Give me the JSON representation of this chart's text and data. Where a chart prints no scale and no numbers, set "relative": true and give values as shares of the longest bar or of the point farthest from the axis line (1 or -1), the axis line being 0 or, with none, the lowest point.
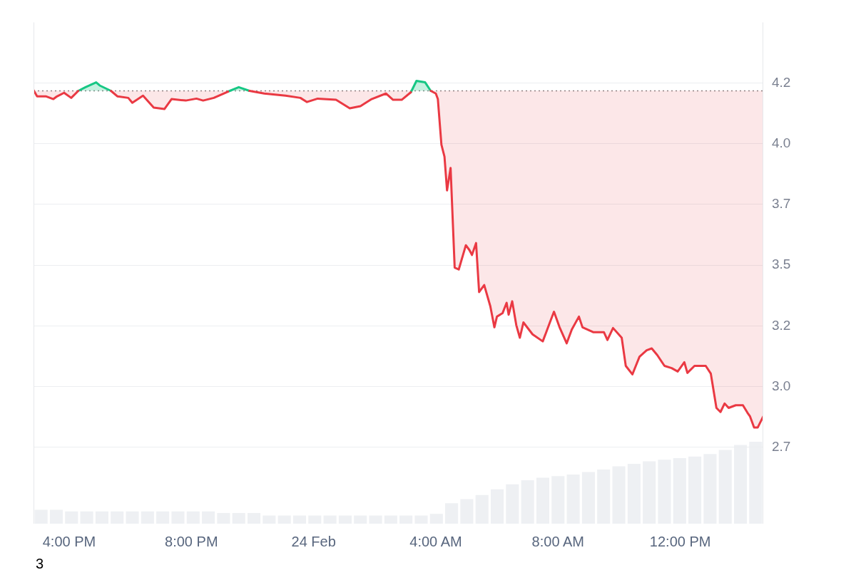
{
  "chart_data": [
    {
      "type": "line",
      "xlim": [
        "--02-23T14:50",
        "--02-24T14:43"
      ],
      "xticks": [
        {
          "value": "--02-23T16:00",
          "label": "4:00 PM"
        },
        {
          "value": "--02-23T20:00",
          "label": "8:00 PM"
        },
        {
          "value": "--02-24T00:00",
          "label": "24 Feb"
        },
        {
          "value": "--02-24T04:00",
          "label": "4:00 AM"
        },
        {
          "value": "--02-24T08:00",
          "label": "8:00 AM"
        },
        {
          "value": "--02-24T12:00",
          "label": "12:00 PM"
        }
      ],
      "ylim": [
        2.385,
        4.45
      ],
      "yticks": [
        {
          "value": 2.7,
          "label": "2.7"
        },
        {
          "value": 2.95,
          "label": "3.0"
        },
        {
          "value": 3.2,
          "label": "3.2"
        },
        {
          "value": 3.45,
          "label": "3.5"
        },
        {
          "value": 3.7,
          "label": "3.7"
        },
        {
          "value": 3.95,
          "label": "4.0"
        },
        {
          "value": 4.2,
          "label": "4.2"
        }
      ],
      "grid": "y",
      "legend": false,
      "marker": "none",
      "line_style": "solid",
      "ref_lines": [
        {
          "axis": "y",
          "value": 4.168,
          "color": "#888888",
          "line_style": "dotted"
        }
      ],
      "annotations": [
        "3"
      ],
      "series": [
        {
          "color": "#16c784",
          "x": [
            "--02-23T16:18",
            "--02-23T16:32",
            "--02-23T16:53",
            "--02-23T17:00",
            "--02-23T17:22",
            "--02-23T19:00",
            "--02-23T21:12",
            "--02-23T21:33",
            "--02-23T21:54",
            "--02-24T01:00",
            "--02-24T03:11",
            "--02-24T03:22",
            "--02-24T03:39",
            "--02-24T03:50"
          ],
          "values": [
            4.168,
            4.183,
            4.203,
            4.19,
            4.168,
            null,
            4.165,
            4.183,
            4.168,
            null,
            4.162,
            4.209,
            4.203,
            4.168
          ]
        },
        {
          "color": "#ea3943",
          "x": [
            "--02-23T14:50",
            "--02-23T14:57",
            "--02-23T15:15",
            "--02-23T15:29",
            "--02-23T15:36",
            "--02-23T15:50",
            "--02-23T16:04",
            "--02-23T16:18",
            "--02-23T16:32",
            "--02-23T17:22",
            "--02-23T17:35",
            "--02-23T17:56",
            "--02-23T18:04",
            "--02-23T18:25",
            "--02-23T18:46",
            "--02-23T19:07",
            "--02-23T19:21",
            "--02-23T19:49",
            "--02-23T20:10",
            "--02-23T20:23",
            "--02-23T20:44",
            "--02-23T21:12",
            "--02-23T21:33",
            "--02-23T21:54",
            "--02-23T22:23",
            "--02-23T23:05",
            "--02-23T23:34",
            "--02-23T23:47",
            "--02-24T00:08",
            "--02-24T00:44",
            "--02-24T01:11",
            "--02-24T01:32",
            "--02-24T01:54",
            "--02-24T02:22",
            "--02-24T02:36",
            "--02-24T02:53",
            "--02-24T03:11",
            "--02-24T03:22",
            "--02-24T03:50",
            "--02-24T04:00",
            "--02-24T04:04",
            "--02-24T04:11",
            "--02-24T04:17",
            "--02-24T04:22",
            "--02-24T04:29",
            "--02-24T04:37",
            "--02-24T04:45",
            "--02-24T04:59",
            "--02-24T05:06",
            "--02-24T05:11",
            "--02-24T05:19",
            "--02-24T05:25",
            "--02-24T05:35",
            "--02-24T05:47",
            "--02-24T05:55",
            "--02-24T06:00",
            "--02-24T06:11",
            "--02-24T06:19",
            "--02-24T06:23",
            "--02-24T06:30",
            "--02-24T06:38",
            "--02-24T06:45",
            "--02-24T06:52",
            "--02-24T07:10",
            "--02-24T07:30",
            "--02-24T07:44",
            "--02-24T07:52",
            "--02-24T08:03",
            "--02-24T08:17",
            "--02-24T08:27",
            "--02-24T08:41",
            "--02-24T08:48",
            "--02-24T09:09",
            "--02-24T09:30",
            "--02-24T09:37",
            "--02-24T09:48",
            "--02-24T10:05",
            "--02-24T10:13",
            "--02-24T10:26",
            "--02-24T10:40",
            "--02-24T10:54",
            "--02-24T11:04",
            "--02-24T11:15",
            "--02-24T11:29",
            "--02-24T11:43",
            "--02-24T11:55",
            "--02-24T12:08",
            "--02-24T12:14",
            "--02-24T12:28",
            "--02-24T12:42",
            "--02-24T12:50",
            "--02-24T13:00",
            "--02-24T13:11",
            "--02-24T13:19",
            "--02-24T13:27",
            "--02-24T13:35",
            "--02-24T13:49",
            "--02-24T14:03",
            "--02-24T14:12",
            "--02-24T14:17",
            "--02-24T14:25",
            "--02-24T14:32",
            "--02-24T14:43"
          ],
          "values": [
            4.171,
            4.145,
            4.145,
            4.134,
            4.145,
            4.16,
            4.139,
            4.168,
            null,
            4.168,
            4.145,
            4.139,
            4.119,
            4.148,
            4.099,
            4.093,
            4.134,
            4.128,
            4.136,
            4.128,
            4.139,
            4.165,
            null,
            4.168,
            4.157,
            4.148,
            4.139,
            4.122,
            4.136,
            4.131,
            4.096,
            4.105,
            4.134,
            4.157,
            4.131,
            4.131,
            4.162,
            null,
            4.168,
            4.157,
            4.134,
            3.946,
            3.897,
            3.758,
            3.85,
            3.44,
            3.432,
            3.532,
            3.512,
            3.492,
            3.541,
            3.339,
            3.368,
            3.281,
            3.194,
            3.238,
            3.252,
            3.295,
            3.246,
            3.301,
            3.203,
            3.151,
            3.214,
            3.165,
            3.136,
            3.214,
            3.258,
            3.194,
            3.128,
            3.185,
            3.238,
            3.194,
            3.174,
            3.174,
            3.142,
            3.191,
            3.151,
            3.035,
            3.0,
            3.073,
            3.099,
            3.107,
            3.079,
            3.035,
            3.026,
            3.012,
            3.05,
            3.006,
            3.035,
            3.035,
            3.035,
            3.003,
            2.862,
            2.845,
            2.88,
            2.862,
            2.873,
            2.873,
            2.842,
            2.827,
            2.781,
            2.781,
            2.827
          ]
        }
      ]
    },
    {
      "type": "bar",
      "relative": true,
      "color": "#eef0f3",
      "categories": [
        null,
        null,
        null,
        null,
        null,
        null,
        null,
        null,
        null,
        null,
        null,
        null,
        null,
        null,
        null,
        null,
        null,
        null,
        null,
        null,
        null,
        null,
        null,
        null,
        null,
        null,
        null,
        null,
        null,
        null,
        null,
        null,
        null,
        null,
        null,
        null,
        null,
        null,
        null,
        null,
        null,
        null,
        null,
        null,
        null,
        null,
        null,
        null
      ],
      "values": [
        0.17,
        0.17,
        0.15,
        0.15,
        0.15,
        0.15,
        0.15,
        0.15,
        0.15,
        0.15,
        0.15,
        0.15,
        0.13,
        0.13,
        0.13,
        0.1,
        0.1,
        0.1,
        0.1,
        0.1,
        0.1,
        0.1,
        0.1,
        0.1,
        0.1,
        0.1,
        0.12,
        0.25,
        0.3,
        0.35,
        0.42,
        0.48,
        0.53,
        0.56,
        0.58,
        0.6,
        0.63,
        0.66,
        0.7,
        0.73,
        0.76,
        0.78,
        0.8,
        0.82,
        0.85,
        0.9,
        0.96,
        1.0
      ]
    }
  ]
}
